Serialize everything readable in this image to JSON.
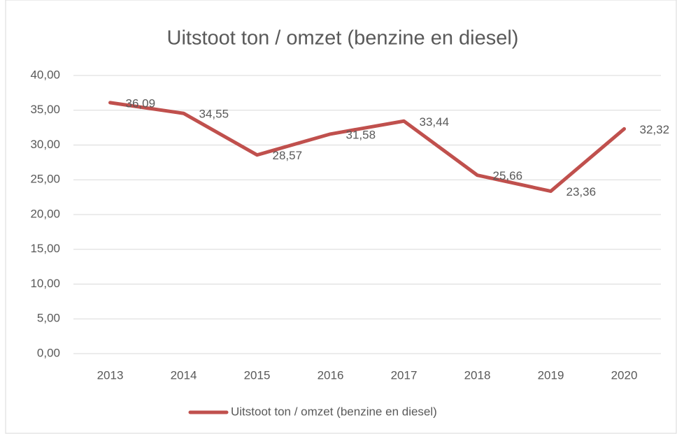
{
  "chart_data": {
    "type": "line",
    "title": "Uitstoot ton / omzet (benzine en diesel)",
    "categories": [
      "2013",
      "2014",
      "2015",
      "2016",
      "2017",
      "2018",
      "2019",
      "2020"
    ],
    "series": [
      {
        "name": "Uitstoot ton / omzet (benzine en diesel)",
        "color": "#c0504d",
        "values": [
          36.09,
          34.55,
          28.57,
          31.58,
          33.44,
          25.66,
          23.36,
          32.32
        ],
        "value_labels": [
          "36,09",
          "34,55",
          "28,57",
          "31,58",
          "33,44",
          "25,66",
          "23,36",
          "32,32"
        ]
      }
    ],
    "ylim": [
      0,
      40
    ],
    "yticks": [
      {
        "value": 0,
        "label": "0,00"
      },
      {
        "value": 5,
        "label": "5,00"
      },
      {
        "value": 10,
        "label": "10,00"
      },
      {
        "value": 15,
        "label": "15,00"
      },
      {
        "value": 20,
        "label": "20,00"
      },
      {
        "value": 25,
        "label": "25,00"
      },
      {
        "value": 30,
        "label": "30,00"
      },
      {
        "value": 35,
        "label": "35,00"
      },
      {
        "value": 40,
        "label": "40,00"
      }
    ],
    "grid": true,
    "legend": "bottom"
  }
}
